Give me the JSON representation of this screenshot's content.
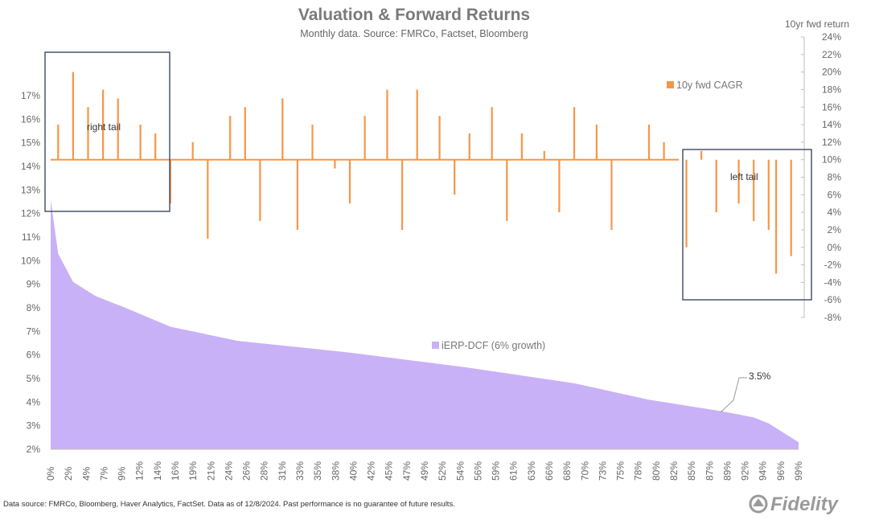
{
  "title": "Valuation & Forward Returns",
  "subtitle": "Monthly data.  Source: FMRCo, Factset, Bloomberg",
  "footer": "Data source: FMRCo, Bloomberg, Haver Analytics, FactSet. Data as of 12/8/2024. Past performance is no guarantee of future results.",
  "logo_text": "Fidelity",
  "colors": {
    "erp": "#c9b1f7",
    "cagr": "#f79646",
    "box": "#2e3a59",
    "axis": "#bdbdbd"
  },
  "chart_data": {
    "type": "area",
    "left_axis": {
      "ticks": [
        "17%",
        "16%",
        "15%",
        "14%",
        "13%",
        "12%",
        "11%",
        "10%",
        "9%",
        "8%",
        "7%",
        "6%",
        "5%",
        "4%",
        "3%",
        "2%"
      ],
      "range": [
        2,
        17.5
      ]
    },
    "right_axis": {
      "title": "10yr fwd return",
      "ticks": [
        "24%",
        "22%",
        "20%",
        "18%",
        "16%",
        "14%",
        "12%",
        "10%",
        "8%",
        "6%",
        "4%",
        "2%",
        "0%",
        "-2%",
        "-4%",
        "-6%",
        "-8%"
      ],
      "range": [
        -8,
        24
      ]
    },
    "x_ticks": [
      "0%",
      "2%",
      "4%",
      "7%",
      "9%",
      "12%",
      "14%",
      "16%",
      "19%",
      "21%",
      "24%",
      "26%",
      "28%",
      "31%",
      "33%",
      "35%",
      "38%",
      "40%",
      "42%",
      "45%",
      "47%",
      "49%",
      "52%",
      "54%",
      "56%",
      "59%",
      "61%",
      "63%",
      "66%",
      "68%",
      "70%",
      "73%",
      "75%",
      "78%",
      "80%",
      "82%",
      "85%",
      "87%",
      "89%",
      "92%",
      "94%",
      "96%",
      "99%"
    ],
    "series": [
      {
        "name": "iERP-DCF (6% growth)",
        "kind": "area",
        "x": [
          0,
          1,
          3,
          6,
          10,
          16,
          25,
          40,
          55,
          70,
          80,
          90,
          94,
          96,
          98,
          100
        ],
        "y": [
          12.6,
          10.3,
          9.1,
          8.5,
          8.0,
          7.2,
          6.6,
          6.1,
          5.5,
          4.8,
          4.1,
          3.6,
          3.35,
          3.1,
          2.7,
          2.3
        ]
      },
      {
        "name": "10y fwd CAGR",
        "kind": "bars-from-10%",
        "baseline": 10,
        "points": [
          {
            "x": 1,
            "y": 14
          },
          {
            "x": 3,
            "y": 20
          },
          {
            "x": 5,
            "y": 16
          },
          {
            "x": 7,
            "y": 18
          },
          {
            "x": 9,
            "y": 17
          },
          {
            "x": 12,
            "y": 14
          },
          {
            "x": 14,
            "y": 13
          },
          {
            "x": 16,
            "y": 5
          },
          {
            "x": 19,
            "y": 12
          },
          {
            "x": 21,
            "y": 1
          },
          {
            "x": 24,
            "y": 15
          },
          {
            "x": 26,
            "y": 16
          },
          {
            "x": 28,
            "y": 3
          },
          {
            "x": 31,
            "y": 17
          },
          {
            "x": 33,
            "y": 2
          },
          {
            "x": 35,
            "y": 14
          },
          {
            "x": 38,
            "y": 9
          },
          {
            "x": 40,
            "y": 5
          },
          {
            "x": 42,
            "y": 15
          },
          {
            "x": 45,
            "y": 18
          },
          {
            "x": 47,
            "y": 2
          },
          {
            "x": 49,
            "y": 18
          },
          {
            "x": 52,
            "y": 15
          },
          {
            "x": 54,
            "y": 6
          },
          {
            "x": 56,
            "y": 13
          },
          {
            "x": 59,
            "y": 16
          },
          {
            "x": 61,
            "y": 3
          },
          {
            "x": 63,
            "y": 13
          },
          {
            "x": 66,
            "y": 11
          },
          {
            "x": 68,
            "y": 4
          },
          {
            "x": 70,
            "y": 16
          },
          {
            "x": 73,
            "y": 14
          },
          {
            "x": 75,
            "y": 2
          },
          {
            "x": 78,
            "y": 10
          },
          {
            "x": 80,
            "y": 14
          },
          {
            "x": 82,
            "y": 12
          },
          {
            "x": 85,
            "y": 0
          },
          {
            "x": 87,
            "y": 11
          },
          {
            "x": 89,
            "y": 4
          },
          {
            "x": 92,
            "y": 5
          },
          {
            "x": 94,
            "y": 3
          },
          {
            "x": 96,
            "y": 2
          },
          {
            "x": 97,
            "y": -3
          },
          {
            "x": 99,
            "y": -1
          }
        ]
      }
    ],
    "annotations": [
      {
        "text": "right tail"
      },
      {
        "text": "left tail"
      },
      {
        "text": "3.5%"
      }
    ],
    "legend_placement": "inline",
    "grid": false
  }
}
